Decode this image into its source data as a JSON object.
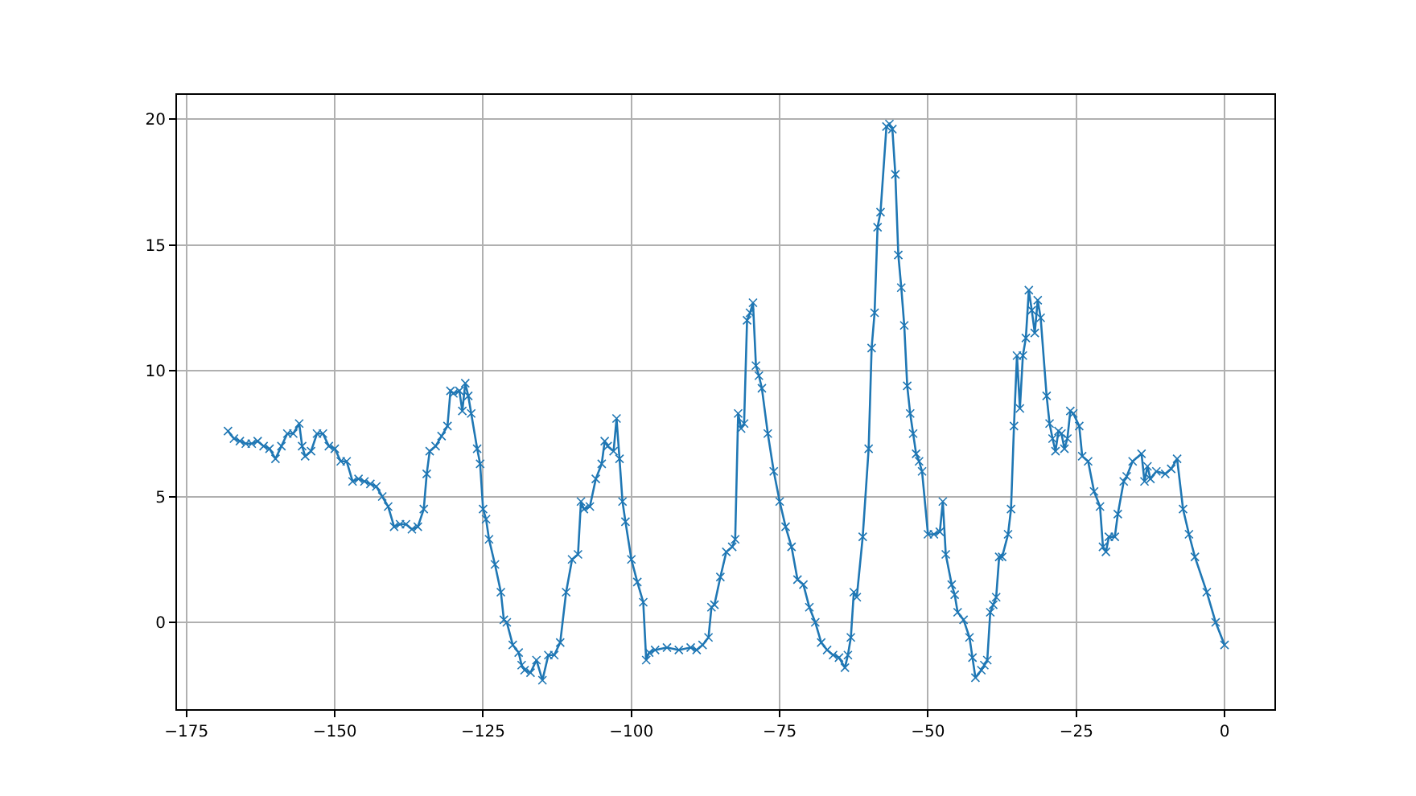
{
  "chart_data": {
    "type": "line",
    "xlim": [
      -176.6,
      8.4
    ],
    "ylim": [
      -3.45,
      20.96
    ],
    "xticks": [
      {
        "value": -175,
        "label": "−175"
      },
      {
        "value": -150,
        "label": "−150"
      },
      {
        "value": -125,
        "label": "−125"
      },
      {
        "value": -100,
        "label": "−100"
      },
      {
        "value": -75,
        "label": "−75"
      },
      {
        "value": -50,
        "label": "−50"
      },
      {
        "value": -25,
        "label": "−25"
      },
      0
    ],
    "yticks": [
      0,
      5,
      10,
      15,
      20
    ],
    "grid": true,
    "legend": false,
    "marker": "cross",
    "line_style": "solid",
    "series": [
      {
        "color": "#1f77b4",
        "x": [
          -168,
          -167,
          -166,
          -165,
          -164,
          -163,
          -162,
          -161,
          -160,
          -159,
          -158,
          -157,
          -156,
          -155.5,
          -155,
          -154,
          -153,
          -152,
          -151,
          -150,
          -149,
          -148,
          -147,
          -146,
          -145,
          -144,
          -143,
          -142,
          -141,
          -140,
          -139,
          -138,
          -137,
          -136,
          -135,
          -134.5,
          -134,
          -133,
          -132,
          -131,
          -130.5,
          -130,
          -129,
          -128.5,
          -128,
          -127.5,
          -127,
          -126,
          -125.5,
          -125,
          -124.5,
          -124,
          -123,
          -122,
          -121.5,
          -121,
          -120,
          -119,
          -118.5,
          -118,
          -117,
          -116,
          -115,
          -114,
          -113,
          -112,
          -111,
          -110,
          -109,
          -108.5,
          -108,
          -107,
          -106,
          -105,
          -104.5,
          -104,
          -103,
          -102.5,
          -102,
          -101.5,
          -101,
          -100,
          -99,
          -98,
          -97.5,
          -97,
          -96,
          -94,
          -92,
          -90,
          -89,
          -88,
          -87,
          -86.5,
          -86,
          -85,
          -84,
          -83,
          -82.5,
          -82,
          -81.5,
          -81,
          -80.5,
          -80,
          -79.5,
          -79,
          -78.5,
          -78,
          -77,
          -76,
          -75,
          -74,
          -73,
          -72,
          -71,
          -70,
          -69,
          -68,
          -67,
          -66,
          -65,
          -64,
          -63.5,
          -63,
          -62.5,
          -62,
          -61,
          -60,
          -59.5,
          -59,
          -58.5,
          -58,
          -57,
          -56.5,
          -56,
          -55.5,
          -55,
          -54.5,
          -54,
          -53.5,
          -53,
          -52.5,
          -52,
          -51.5,
          -51,
          -50,
          -49,
          -48,
          -47.5,
          -47,
          -46,
          -45.5,
          -45,
          -44,
          -43,
          -42.5,
          -42,
          -41,
          -40.5,
          -40,
          -39.5,
          -39,
          -38.5,
          -38,
          -37.5,
          -36.5,
          -36,
          -35.5,
          -35,
          -34.5,
          -34,
          -33.5,
          -33,
          -32.5,
          -32,
          -31.5,
          -31,
          -30,
          -29.5,
          -29,
          -28.5,
          -28,
          -27.5,
          -27,
          -26.5,
          -26,
          -25.5,
          -24.5,
          -24,
          -23,
          -22,
          -21,
          -20.5,
          -20,
          -19.5,
          -18.5,
          -18,
          -17,
          -16.5,
          -15.5,
          -14,
          -13.5,
          -13,
          -12.5,
          -11.5,
          -10,
          -9,
          -8,
          -7,
          -6,
          -5,
          -3,
          -1.5,
          0
        ],
        "values": [
          7.6,
          7.3,
          7.2,
          7.1,
          7.1,
          7.2,
          7.0,
          6.9,
          6.5,
          7.0,
          7.5,
          7.5,
          7.9,
          7.0,
          6.6,
          6.8,
          7.5,
          7.5,
          7.0,
          6.9,
          6.4,
          6.4,
          5.6,
          5.7,
          5.6,
          5.5,
          5.4,
          5.0,
          4.6,
          3.8,
          3.9,
          3.9,
          3.7,
          3.8,
          4.5,
          5.9,
          6.8,
          7.0,
          7.4,
          7.8,
          9.2,
          9.1,
          9.2,
          8.4,
          9.5,
          9.0,
          8.3,
          6.9,
          6.3,
          4.5,
          4.1,
          3.3,
          2.3,
          1.2,
          0.1,
          0.0,
          -0.9,
          -1.2,
          -1.7,
          -1.9,
          -2.0,
          -1.5,
          -2.3,
          -1.3,
          -1.3,
          -0.8,
          1.2,
          2.5,
          2.7,
          4.8,
          4.5,
          4.6,
          5.7,
          6.3,
          7.2,
          7.0,
          6.8,
          8.1,
          6.5,
          4.8,
          4.0,
          2.5,
          1.6,
          0.8,
          -1.5,
          -1.2,
          -1.1,
          -1.0,
          -1.1,
          -1.0,
          -1.1,
          -0.9,
          -0.6,
          0.6,
          0.7,
          1.8,
          2.8,
          3.0,
          3.3,
          8.3,
          7.7,
          7.9,
          12.0,
          12.3,
          12.7,
          10.2,
          9.8,
          9.3,
          7.5,
          6.0,
          4.8,
          3.8,
          3.0,
          1.7,
          1.5,
          0.6,
          0.0,
          -0.8,
          -1.1,
          -1.3,
          -1.4,
          -1.8,
          -1.3,
          -0.6,
          1.2,
          1.0,
          3.4,
          6.9,
          10.9,
          12.3,
          15.7,
          16.3,
          19.7,
          19.8,
          19.6,
          17.8,
          14.6,
          13.3,
          11.8,
          9.4,
          8.3,
          7.5,
          6.7,
          6.4,
          6.0,
          3.5,
          3.5,
          3.6,
          4.8,
          2.7,
          1.5,
          1.1,
          0.4,
          0.1,
          -0.6,
          -1.4,
          -2.2,
          -1.9,
          -1.7,
          -1.5,
          0.4,
          0.7,
          1.0,
          2.6,
          2.6,
          3.5,
          4.5,
          7.8,
          10.6,
          8.5,
          10.6,
          11.3,
          13.2,
          12.4,
          11.5,
          12.8,
          12.1,
          9.0,
          7.9,
          7.3,
          6.8,
          7.6,
          7.5,
          6.9,
          7.3,
          8.4,
          8.3,
          7.8,
          6.6,
          6.4,
          5.2,
          4.6,
          3.0,
          2.8,
          3.4,
          3.4,
          4.3,
          5.6,
          5.8,
          6.4,
          6.7,
          5.6,
          6.2,
          5.7,
          6.0,
          5.9,
          6.1,
          6.5,
          4.5,
          3.5,
          2.6,
          1.2,
          0.0,
          -0.9
        ]
      }
    ]
  }
}
